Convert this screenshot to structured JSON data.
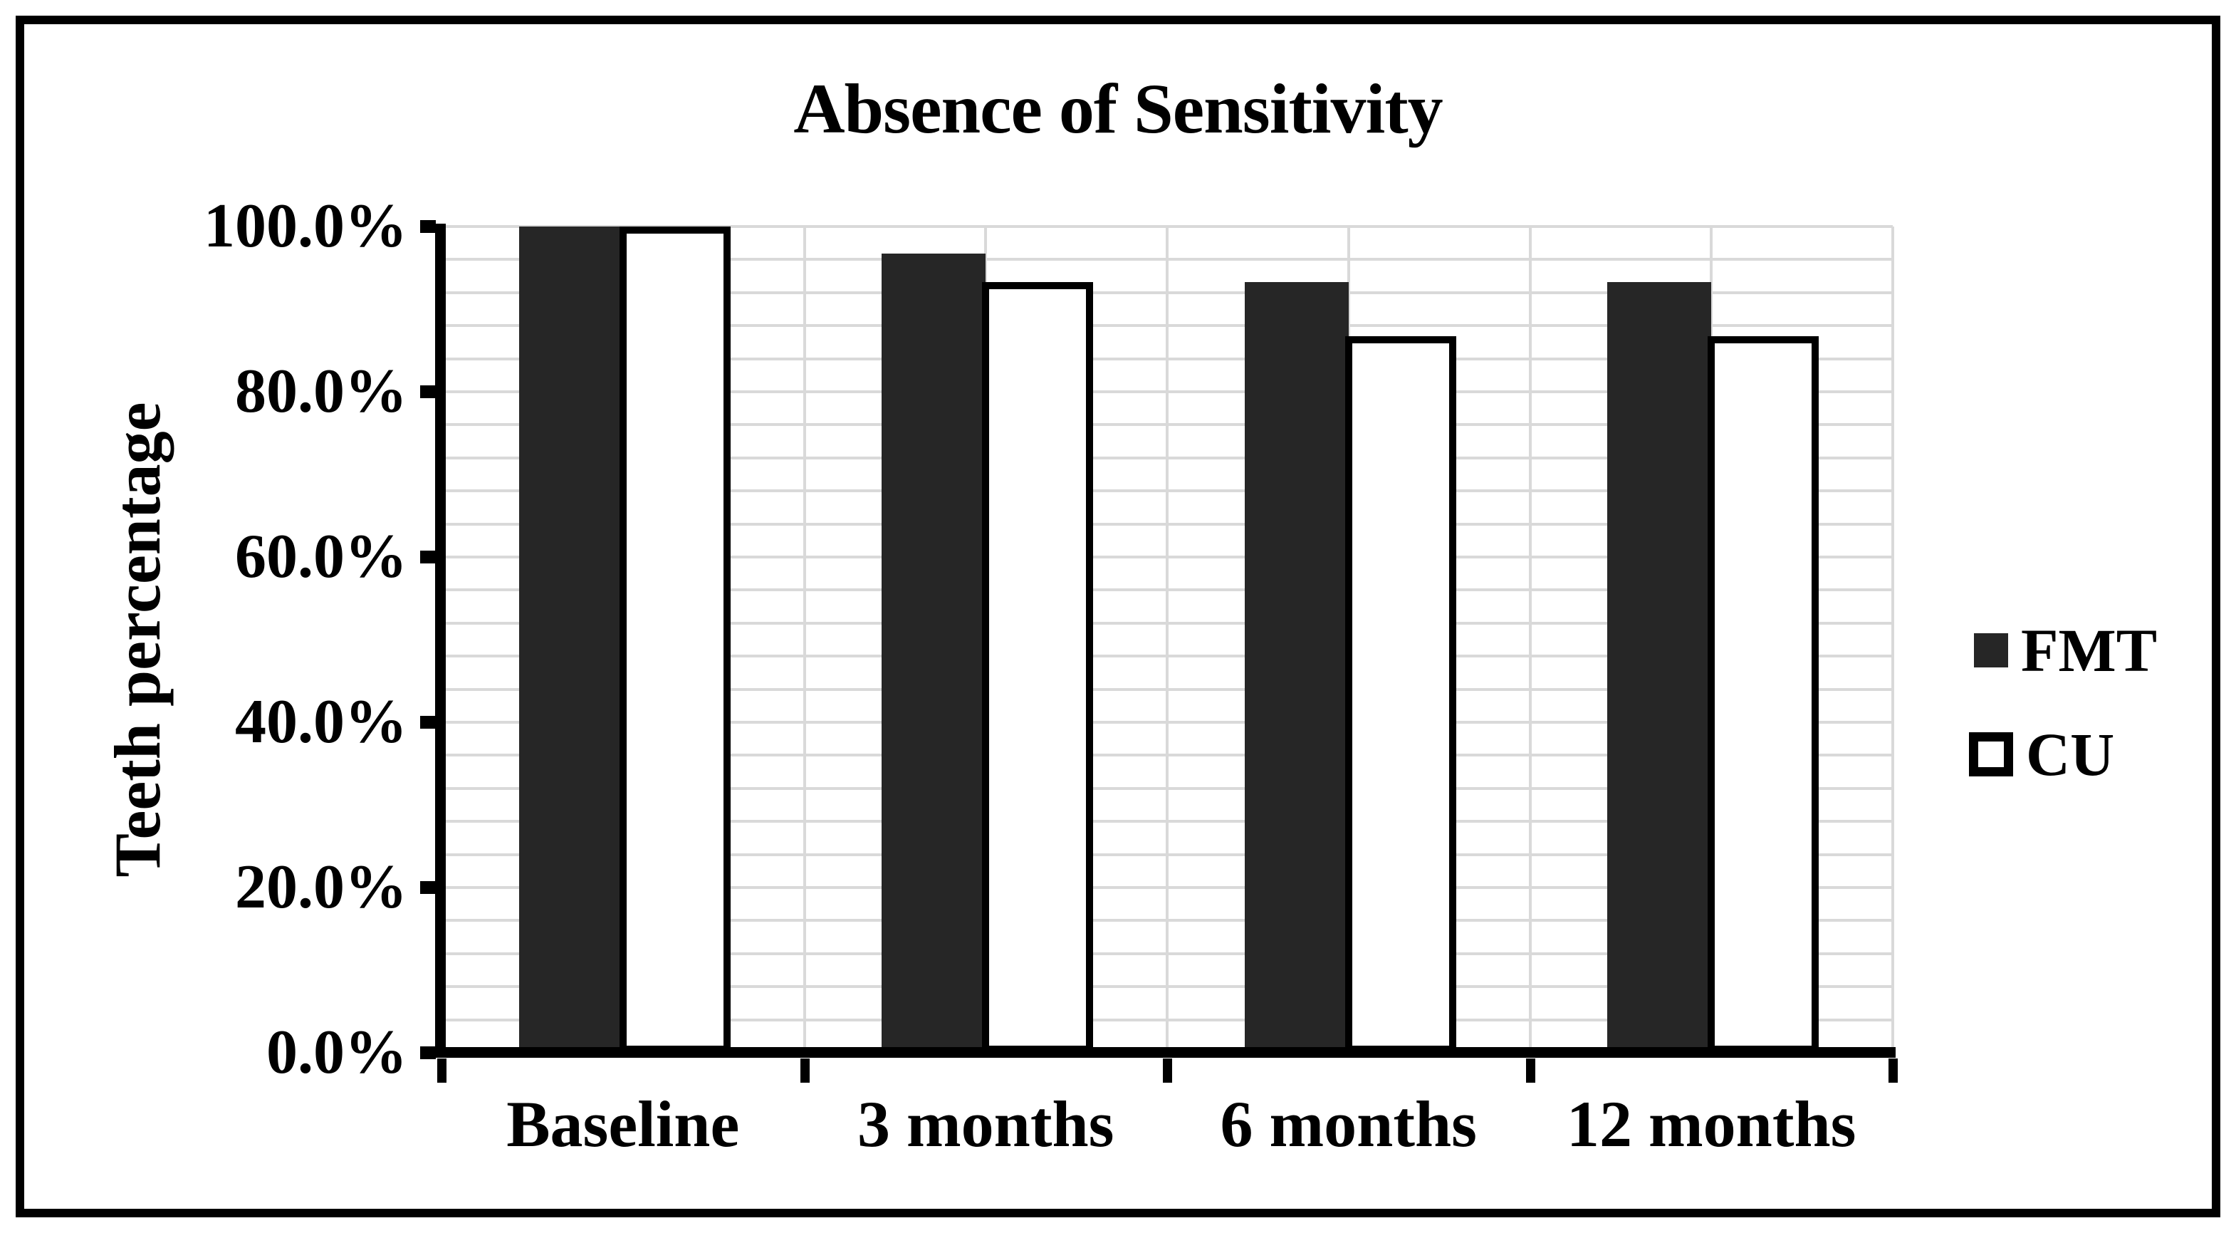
{
  "figure": {
    "title": "Absence of Sensitivity",
    "border_color": "#000000",
    "background": "#ffffff"
  },
  "chart_data": {
    "type": "bar",
    "title": "Absence of Sensitivity",
    "xlabel": "",
    "ylabel": "Teeth percentage",
    "categories": [
      "Baseline",
      "3 months",
      "6 months",
      "12 months"
    ],
    "series": [
      {
        "name": "FMT",
        "values": [
          100.0,
          96.7,
          93.3,
          93.3
        ],
        "fill": "#262626",
        "border": "none"
      },
      {
        "name": "CU",
        "values": [
          100.0,
          93.3,
          86.7,
          86.7
        ],
        "fill": "#ffffff",
        "border": "#000000"
      }
    ],
    "value_unit": "percent",
    "y_axis": {
      "min": 0,
      "max": 100,
      "major_unit": 20,
      "minor_unit": 4,
      "tick_labels": [
        "100.0%",
        "80.0%",
        "60.0%",
        "40.0%",
        "20.0%",
        "0.0%"
      ]
    },
    "grid": {
      "horizontal_minor": true,
      "vertical_half_category": true,
      "color": "#d9d9d9"
    },
    "legend": {
      "position": "right",
      "entries": [
        "FMT",
        "CU"
      ]
    },
    "colors": {
      "fmt_fill": "#262626",
      "cu_fill": "#ffffff",
      "cu_border": "#000000",
      "axis": "#000000",
      "gridline": "#d9d9d9"
    }
  }
}
